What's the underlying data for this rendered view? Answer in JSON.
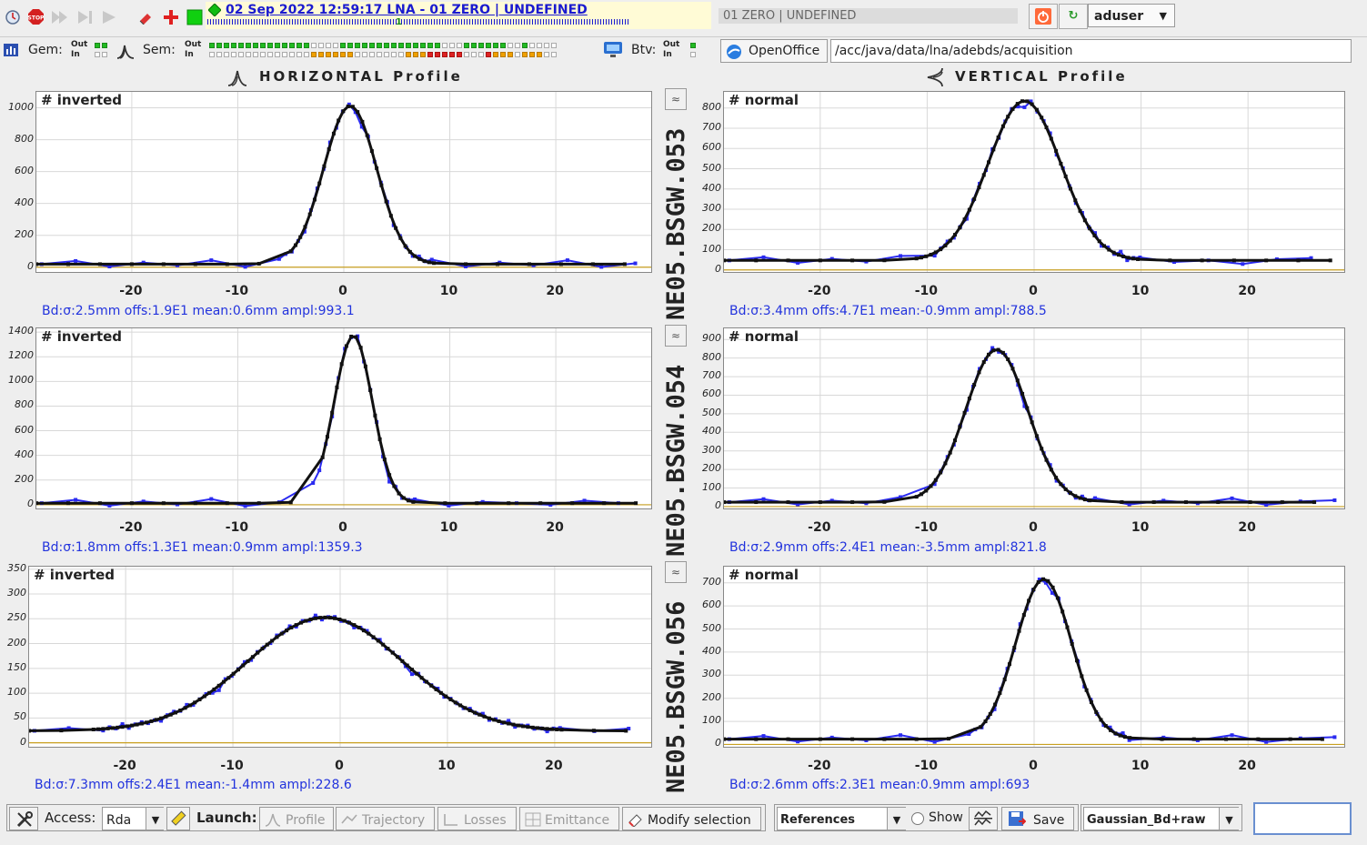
{
  "topbar": {
    "title": "02 Sep 2022  12:59:17  LNA - 01 ZERO | UNDEFINED",
    "title_marker": "1",
    "status": "01 ZERO | UNDEFINED",
    "user": "aduser"
  },
  "bar2": {
    "gem_label": "Gem:",
    "sem_label": "Sem:",
    "btv_label": "Btv:",
    "out_label": "Out",
    "in_label": "In",
    "openoffice_label": "OpenOffice",
    "path": "/acc/java/data/lna/adebds/acquisition",
    "colors": {
      "ok": "#22bb22",
      "warn": "#f0a000",
      "err": "#dd2222"
    }
  },
  "headers": {
    "horizontal": "HORIZONTAL Profile",
    "vertical": "VERTICAL Profile"
  },
  "monitors": [
    "NE05.BSGW.053",
    "NE05.BSGW.054",
    "NE05.BSGW.056"
  ],
  "plots": [
    {
      "tag": "# inverted",
      "caption": "Bd:σ:2.5mm offs:1.9E1 mean:0.6mm ampl:993.1",
      "yticks": [
        "1000",
        "800",
        "600",
        "400",
        "200",
        "0"
      ]
    },
    {
      "tag": "# normal",
      "caption": "Bd:σ:3.4mm offs:4.7E1 mean:-0.9mm ampl:788.5",
      "yticks": [
        "800",
        "700",
        "600",
        "500",
        "400",
        "300",
        "200",
        "100",
        "0"
      ]
    },
    {
      "tag": "# inverted",
      "caption": "Bd:σ:1.8mm offs:1.3E1 mean:0.9mm ampl:1359.3",
      "yticks": [
        "1400",
        "1200",
        "1000",
        "800",
        "600",
        "400",
        "200",
        "0"
      ]
    },
    {
      "tag": "# normal",
      "caption": "Bd:σ:2.9mm offs:2.4E1 mean:-3.5mm ampl:821.8",
      "yticks": [
        "900",
        "800",
        "700",
        "600",
        "500",
        "400",
        "300",
        "200",
        "100",
        "0"
      ]
    },
    {
      "tag": "# inverted",
      "caption": "Bd:σ:7.3mm offs:2.4E1 mean:-1.4mm ampl:228.6",
      "yticks": [
        "350",
        "300",
        "250",
        "200",
        "150",
        "100",
        "50",
        "0"
      ]
    },
    {
      "tag": "# normal",
      "caption": "Bd:σ:2.6mm offs:2.3E1 mean:0.9mm ampl:693",
      "yticks": [
        "700",
        "600",
        "500",
        "400",
        "300",
        "200",
        "100",
        "0"
      ]
    }
  ],
  "xticks": [
    "-20",
    "-10",
    "0",
    "10",
    "20"
  ],
  "chart_data": [
    {
      "type": "line",
      "sigma": 2.5,
      "mean": 0.6,
      "offset": 19,
      "amplitude": 993.1,
      "ylim": [
        -30,
        1100
      ],
      "xlim": [
        -29,
        29
      ]
    },
    {
      "type": "line",
      "sigma": 3.4,
      "mean": -0.9,
      "offset": 47,
      "amplitude": 788.5,
      "ylim": [
        -10,
        880
      ],
      "xlim": [
        -29,
        29
      ]
    },
    {
      "type": "line",
      "sigma": 1.8,
      "mean": 0.9,
      "offset": 13,
      "amplitude": 1359.3,
      "ylim": [
        -30,
        1430
      ],
      "xlim": [
        -29,
        29
      ]
    },
    {
      "type": "line",
      "sigma": 2.9,
      "mean": -3.5,
      "offset": 24,
      "amplitude": 821.8,
      "ylim": [
        -10,
        960
      ],
      "xlim": [
        -29,
        29
      ]
    },
    {
      "type": "line",
      "sigma": 7.3,
      "mean": -1.4,
      "offset": 24,
      "amplitude": 228.6,
      "ylim": [
        -8,
        355
      ],
      "xlim": [
        -29,
        29
      ]
    },
    {
      "type": "line",
      "sigma": 2.6,
      "mean": 0.9,
      "offset": 23,
      "amplitude": 693,
      "ylim": [
        -10,
        770
      ],
      "xlim": [
        -29,
        29
      ]
    }
  ],
  "bottom": {
    "access_label": "Access:",
    "access_value": "Rda",
    "launch_label": "Launch:",
    "profile": "Profile",
    "trajectory": "Trajectory",
    "losses": "Losses",
    "emittance": "Emittance",
    "modify": "Modify selection",
    "references": "References",
    "show": "Show",
    "save": "Save",
    "fit": "Gaussian_Bd+raw"
  }
}
